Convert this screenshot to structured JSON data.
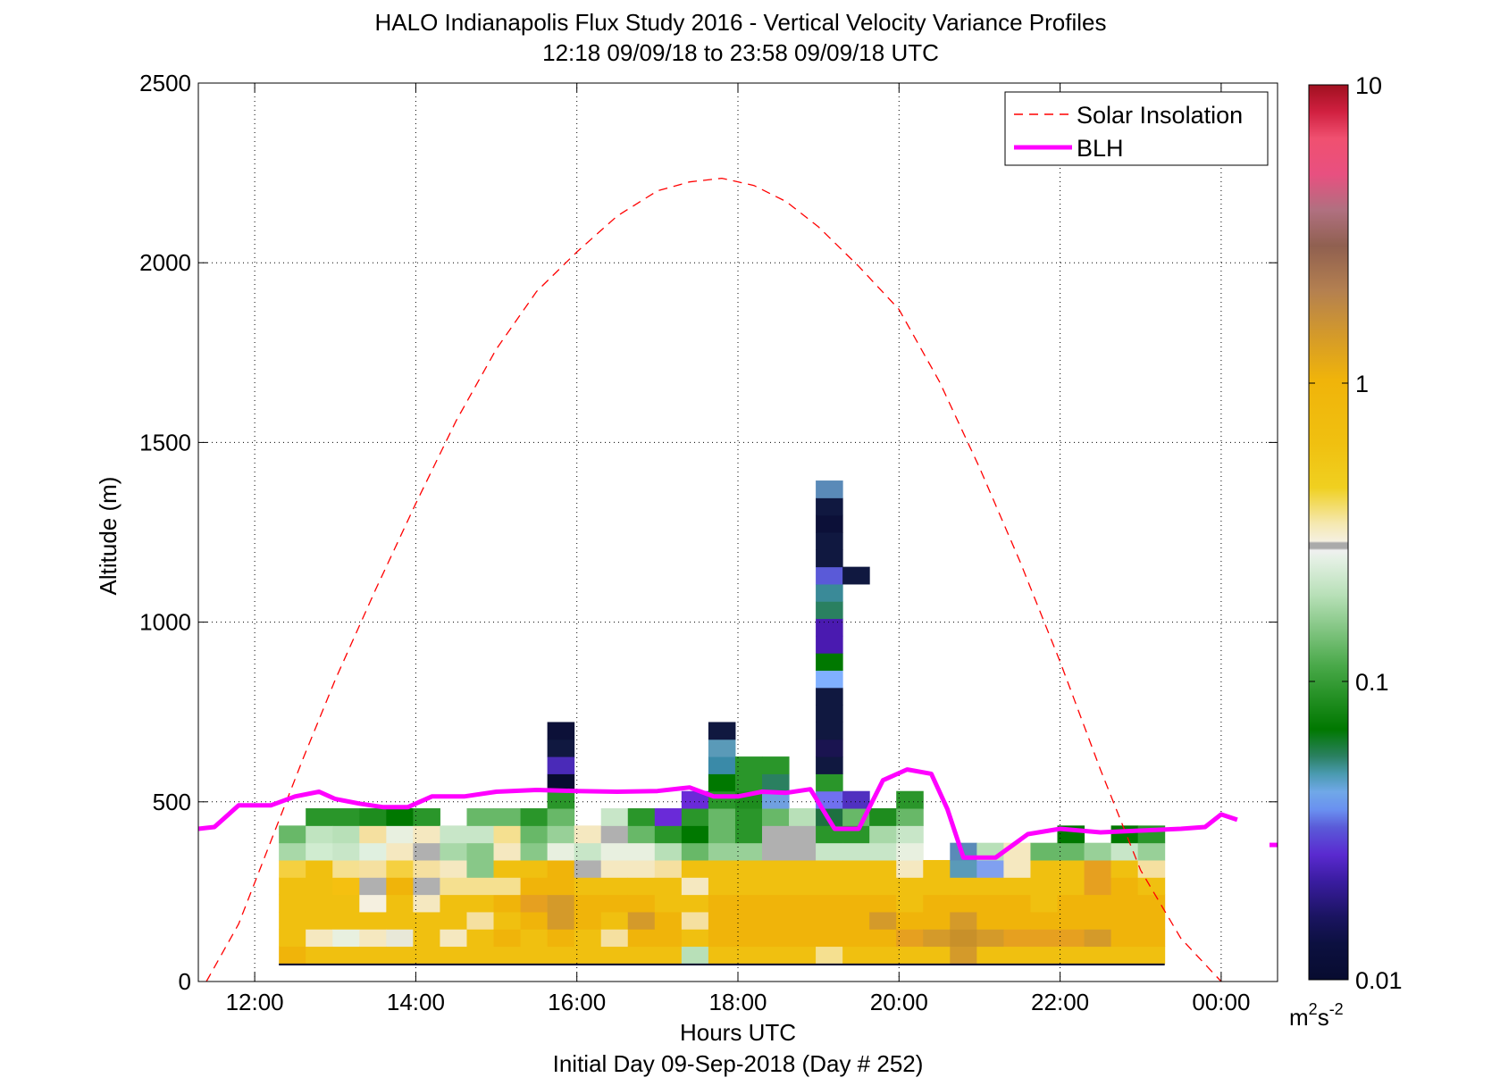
{
  "chart_data": {
    "type": "heatmap",
    "title": "HALO Indianapolis Flux Study 2016 - Vertical Velocity Variance Profiles",
    "subtitle": "12:18 09/09/18 to 23:58 09/09/18  UTC",
    "xlabel": "Hours UTC",
    "xlabel2": "Initial Day 09-Sep-2018 (Day # 252)",
    "ylabel": "Altitude (m)",
    "xlim": [
      11.3,
      24.7
    ],
    "ylim": [
      0,
      2500
    ],
    "x_ticks": [
      {
        "value": 12,
        "label": "12:00"
      },
      {
        "value": 14,
        "label": "14:00"
      },
      {
        "value": 16,
        "label": "16:00"
      },
      {
        "value": 18,
        "label": "18:00"
      },
      {
        "value": 20,
        "label": "20:00"
      },
      {
        "value": 22,
        "label": "22:00"
      },
      {
        "value": 24,
        "label": "00:00"
      }
    ],
    "y_ticks": [
      {
        "value": 0,
        "label": "0"
      },
      {
        "value": 500,
        "label": "500"
      },
      {
        "value": 1000,
        "label": "1000"
      },
      {
        "value": 1500,
        "label": "1500"
      },
      {
        "value": 2000,
        "label": "2000"
      },
      {
        "value": 2500,
        "label": "2500"
      }
    ],
    "grid": true,
    "legend_position": "top-right",
    "colorbar": {
      "scale": "log",
      "min": 0.01,
      "max": 10,
      "ticks": [
        {
          "value": 0.01,
          "label": "0.01"
        },
        {
          "value": 0.1,
          "label": "0.1"
        },
        {
          "value": 1,
          "label": "1"
        },
        {
          "value": 10,
          "label": "10"
        }
      ],
      "units": "m",
      "units_sup1": "2",
      "units_mid": "s",
      "units_sup2": "-2"
    },
    "series": [
      {
        "name": "Solar Insolation",
        "style": "dashed",
        "color": "#ff0000",
        "x": [
          11.4,
          11.8,
          12.2,
          12.6,
          13.0,
          13.5,
          14.0,
          14.5,
          15.0,
          15.5,
          16.0,
          16.5,
          17.0,
          17.4,
          17.8,
          18.2,
          18.6,
          19.0,
          19.5,
          20.0,
          20.5,
          21.0,
          21.5,
          22.0,
          22.5,
          23.0,
          23.5,
          24.0
        ],
        "y": [
          0,
          160,
          390,
          620,
          840,
          1090,
          1330,
          1560,
          1760,
          1920,
          2030,
          2130,
          2200,
          2225,
          2235,
          2215,
          2170,
          2100,
          1990,
          1870,
          1670,
          1430,
          1170,
          890,
          590,
          310,
          120,
          0
        ]
      },
      {
        "name": "BLH",
        "style": "solid",
        "color": "#ff00ff",
        "x": [
          11.3,
          11.5,
          11.8,
          12.0,
          12.2,
          12.5,
          12.8,
          13.0,
          13.3,
          13.6,
          13.9,
          14.2,
          14.6,
          15.0,
          15.5,
          16.0,
          16.5,
          17.0,
          17.4,
          17.7,
          18.0,
          18.3,
          18.6,
          18.9,
          19.2,
          19.5,
          19.8,
          20.1,
          20.4,
          20.6,
          20.8,
          21.0,
          21.2,
          21.6,
          22.0,
          22.5,
          23.0,
          23.5,
          23.8,
          24.0,
          24.2
        ],
        "y": [
          425,
          430,
          490,
          490,
          490,
          515,
          528,
          508,
          495,
          485,
          485,
          515,
          515,
          528,
          533,
          530,
          528,
          530,
          540,
          515,
          515,
          528,
          525,
          535,
          425,
          425,
          560,
          590,
          578,
          480,
          345,
          345,
          345,
          410,
          425,
          415,
          420,
          425,
          430,
          465,
          450
        ]
      }
    ],
    "blh_extra_segment": {
      "x": [
        24.6,
        24.7
      ],
      "y": [
        380,
        380
      ]
    },
    "heatmap": {
      "x_start": 12.3,
      "x_step": 0.3333,
      "y_start": 50,
      "y_step": 48,
      "columns": [
        {
          "bands": [
            "#f0b40a",
            "#f0c010",
            "#f0c010",
            "#f0c010",
            "#f0c010",
            "#f5d040",
            "#a8d8a8",
            "#68b868"
          ]
        },
        {
          "bands": [
            "#f0c010",
            "#f5e8c0",
            "#f0c010",
            "#f0c010",
            "#f0c010",
            "#f0c010",
            "#d0ecd0",
            "#c0e4c0",
            "#2a962a"
          ]
        },
        {
          "bands": [
            "#f0c010",
            "#e8f0e0",
            "#f0c010",
            "#f0c010",
            "#f5c010",
            "#f5e090",
            "#c8e6c8",
            "#b8e0b8",
            "#2a962a"
          ]
        },
        {
          "bands": [
            "#f0c010",
            "#f5e8c0",
            "#f0c010",
            "#f5f0e0",
            "#b0b0b0",
            "#f5e0a0",
            "#e0f0e0",
            "#f5e0a0",
            "#1e8c1e"
          ]
        },
        {
          "bands": [
            "#f0c010",
            "#e8e8d8",
            "#f0c010",
            "#f0c010",
            "#f0b40a",
            "#f5d040",
            "#f5e8c0",
            "#e8f0e0",
            "#007800"
          ]
        },
        {
          "bands": [
            "#f0c010",
            "#f0c010",
            "#f0c010",
            "#f5e8c0",
            "#b0b0b0",
            "#f5e0a0",
            "#b0b0b0",
            "#f5e8c0",
            "#2a962a"
          ]
        },
        {
          "bands": [
            "#f0c010",
            "#f5e8c0",
            "#f0c010",
            "#f0c010",
            "#f5e090",
            "#f5e8c0",
            "#a8d8a8",
            "#c8e6c8"
          ]
        },
        {
          "bands": [
            "#f0c010",
            "#f0c010",
            "#f5e0a0",
            "#f0c010",
            "#f5e090",
            "#88c888",
            "#88c888",
            "#c8e6c8",
            "#68b868"
          ]
        },
        {
          "bands": [
            "#f0c010",
            "#f0b40a",
            "#f0c010",
            "#f0b40a",
            "#f5e090",
            "#f0c010",
            "#f5e8c0",
            "#f5e090",
            "#68b868"
          ]
        },
        {
          "bands": [
            "#f0c010",
            "#f0c010",
            "#f0b40a",
            "#e6a020",
            "#f0b40a",
            "#f0c010",
            "#88c888",
            "#68b868",
            "#2a962a"
          ]
        },
        {
          "bands": [
            "#f0c010",
            "#f0b40a",
            "#d49a2a",
            "#d49a2a",
            "#f0b40a",
            "#f0b40a",
            "#e8f0e0",
            "#98d098",
            "#68b868",
            "#2a962a",
            "#080c30",
            "#4a2ab8",
            "#101840",
            "#0c1038"
          ]
        },
        {
          "bands": [
            "#f0c010",
            "#f0c010",
            "#f0b40a",
            "#f0b40a",
            "#f0c010",
            "#b0b0b0",
            "#c8e6c8",
            "#f5e8c0"
          ]
        },
        {
          "bands": [
            "#f0c010",
            "#f5e0a0",
            "#f0c010",
            "#f0b40a",
            "#f0c010",
            "#f5e8c0",
            "#e8f0e0",
            "#b0b0b0",
            "#c8e6c8"
          ]
        },
        {
          "bands": [
            "#f0c010",
            "#f0b40a",
            "#d49a2a",
            "#f0b40a",
            "#f0c010",
            "#f5e8c0",
            "#e8f0e0",
            "#68b868",
            "#2a962a"
          ]
        },
        {
          "bands": [
            "#f0c010",
            "#f0b40a",
            "#f0b40a",
            "#f0c010",
            "#f0c010",
            "#f5e0a0",
            "#b8e0b8",
            "#2a962a",
            "#6a2ad8"
          ]
        },
        {
          "bands": [
            "#b8e0b8",
            "#f0c010",
            "#f5e0a0",
            "#f0c010",
            "#f5e8c0",
            "#f0c010",
            "#68b868",
            "#007800",
            "#2a962a",
            "#6a2ad8"
          ]
        },
        {
          "bands": [
            "#f0c010",
            "#f0b40a",
            "#f0b40a",
            "#f0b40a",
            "#f0c010",
            "#f0c010",
            "#98d098",
            "#68b868",
            "#68b868",
            "#2a962a",
            "#007800",
            "#3a8aa8",
            "#5a9ab8",
            "#101840"
          ]
        },
        {
          "bands": [
            "#f0c010",
            "#f0b40a",
            "#f0b40a",
            "#f0b40a",
            "#f0c010",
            "#f0c010",
            "#98d098",
            "#2a962a",
            "#2a962a",
            "#1e8c1e",
            "#2a962a",
            "#2a962a"
          ]
        },
        {
          "bands": [
            "#f0c010",
            "#f0b40a",
            "#f0b40a",
            "#f0b40a",
            "#f0c010",
            "#f0c010",
            "#b0b0b0",
            "#b0b0b0",
            "#68b868",
            "#70a0e0",
            "#2a8060",
            "#2a962a"
          ]
        },
        {
          "bands": [
            "#f0c010",
            "#f0b40a",
            "#f0b40a",
            "#f0b40a",
            "#f0c010",
            "#f0c010",
            "#b0b0b0",
            "#b0b0b0",
            "#b8e0b8"
          ]
        },
        {
          "bands": [
            "#f5e090",
            "#f0b40a",
            "#f0b40a",
            "#f0b40a",
            "#f0c010",
            "#f0c010",
            "#c8e6c8",
            "#2a962a",
            "#1e7040",
            "#7070f0",
            "#2a962a",
            "#101840",
            "#1a1450",
            "#101840",
            "#101840",
            "#101840",
            "#80b0ff",
            "#007800",
            "#4a1ab0",
            "#4a1ab0",
            "#2a8060",
            "#3a8a98",
            "#5a5ad8",
            "#101840",
            "#101840",
            "#0c1038",
            "#101840",
            "#5a8ab8"
          ]
        },
        {
          "bands": [
            "#f0c010",
            "#f0b40a",
            "#f0b40a",
            "#f0b40a",
            "#f0c010",
            "#f0c010",
            "#c8e6c8",
            "#2a962a",
            "#68b868",
            "#5030c0",
            "#ffffff",
            "#ffffff",
            "#ffffff",
            "#ffffff",
            "#ffffff",
            "#ffffff",
            "#ffffff",
            "#ffffff",
            "#ffffff",
            "#ffffff",
            "#ffffff",
            "#ffffff",
            "#101840"
          ]
        },
        {
          "bands": [
            "#f0c010",
            "#f0b40a",
            "#d49a2a",
            "#f0b40a",
            "#f0c010",
            "#f0c010",
            "#c8e6c8",
            "#a8d8a8",
            "#1e8c1e"
          ]
        },
        {
          "bands": [
            "#f0c010",
            "#e6a020",
            "#f0b40a",
            "#f0c010",
            "#f0c010",
            "#f5e8c0",
            "#e8f0e0",
            "#c8e6c8",
            "#68b868",
            "#2a962a"
          ]
        },
        {
          "bands": [
            "#f0c010",
            "#d49a2a",
            "#f0b40a",
            "#f0b40a",
            "#f0c010",
            "#f0c010"
          ]
        },
        {
          "bands": [
            "#d49a2a",
            "#c8902a",
            "#d49a2a",
            "#f0b40a",
            "#f0c010",
            "#5a9ab8",
            "#5a8ab8"
          ]
        },
        {
          "bands": [
            "#f0c010",
            "#d49a2a",
            "#f0b40a",
            "#f0b40a",
            "#f0c010",
            "#80a0f0",
            "#b8e0b8"
          ]
        },
        {
          "bands": [
            "#f0c010",
            "#e6a020",
            "#f0b40a",
            "#f0b40a",
            "#f0c010",
            "#f5e8c0",
            "#f5e8c0"
          ]
        },
        {
          "bands": [
            "#f0c010",
            "#e6a020",
            "#f0b40a",
            "#f0c010",
            "#f0c010",
            "#f0c010",
            "#68b868"
          ]
        },
        {
          "bands": [
            "#f0c010",
            "#e6a020",
            "#f0b40a",
            "#f0b40a",
            "#f0c010",
            "#f0c010",
            "#68b868",
            "#007800"
          ]
        },
        {
          "bands": [
            "#f0c010",
            "#d49a2a",
            "#f0b40a",
            "#f0b40a",
            "#e6a020",
            "#e6a020",
            "#98d098"
          ]
        },
        {
          "bands": [
            "#f0c010",
            "#f0b40a",
            "#f0b40a",
            "#f0b40a",
            "#f0b40a",
            "#f0c010",
            "#c8e6c8",
            "#007800"
          ]
        },
        {
          "bands": [
            "#f0c010",
            "#f0b40a",
            "#f0b40a",
            "#f0b40a",
            "#f0c010",
            "#f5e0a0",
            "#98d098",
            "#2a962a"
          ]
        }
      ],
      "bottom_row_color": "#080c30"
    }
  }
}
